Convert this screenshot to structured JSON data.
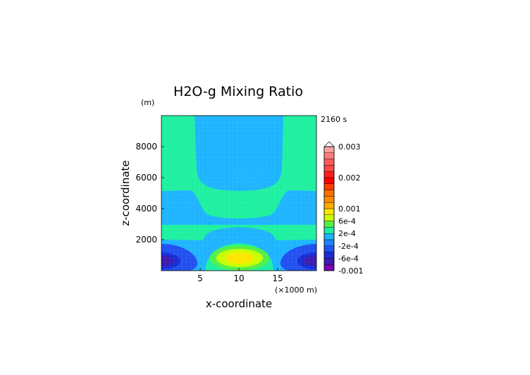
{
  "chart_data": {
    "type": "heatmap",
    "title": "H2O-g Mixing Ratio",
    "ylabel": "z-coordinate",
    "xlabel": "x-coordinate",
    "y_unit": "(m)",
    "x_unit": "(×1000 m)",
    "time_label": "2160 s",
    "xlim": [
      0,
      20
    ],
    "ylim": [
      0,
      10000
    ],
    "x_ticks": [
      5,
      10,
      15
    ],
    "y_ticks": [
      2000,
      4000,
      6000,
      8000
    ],
    "colorbar": {
      "levels": [
        -0.001,
        -0.0008,
        -0.0006,
        -0.0004,
        -0.0002,
        0,
        0.0002,
        0.0004,
        0.0006,
        0.0008,
        0.001,
        0.0012,
        0.0014,
        0.0016,
        0.0018,
        0.002,
        0.0022,
        0.0024,
        0.0026,
        0.0028,
        0.003
      ],
      "colors": [
        "#7a00b4",
        "#3c1cb0",
        "#1a2cd2",
        "#2050f0",
        "#1e82ff",
        "#1eb4ff",
        "#1ef0a0",
        "#52f046",
        "#c8ff00",
        "#ffe600",
        "#ffaa00",
        "#ff8800",
        "#ff6e00",
        "#ff3c00",
        "#ff0000",
        "#ff1e1e",
        "#ff4646",
        "#ff5a5a",
        "#ff7a7a",
        "#ffa0a0"
      ],
      "labels": [
        {
          "value": 0.003,
          "text": "0.003"
        },
        {
          "value": 0.002,
          "text": "0.002"
        },
        {
          "value": 0.001,
          "text": "0.001"
        },
        {
          "value": 0.0006,
          "text": "6e-4"
        },
        {
          "value": 0.0002,
          "text": "2e-4"
        },
        {
          "value": -0.0002,
          "text": "-2e-4"
        },
        {
          "value": -0.0006,
          "text": "-6e-4"
        },
        {
          "value": -0.001,
          "text": "-0.001"
        }
      ]
    },
    "field_regions": [
      {
        "name": "background",
        "value": 0.0001
      },
      {
        "name": "upper-central-column",
        "value": -0.0001
      },
      {
        "name": "mid-level-band",
        "value": -0.0001
      },
      {
        "name": "low-level-band",
        "value": -0.0001
      },
      {
        "name": "left-low-core",
        "value": -0.0003
      },
      {
        "name": "right-low-core",
        "value": -0.0003
      },
      {
        "name": "left-low-minimum",
        "value": -0.0005
      },
      {
        "name": "right-low-minimum",
        "value": -0.0005
      },
      {
        "name": "central-low-maximum",
        "value": 0.0003
      },
      {
        "name": "central-low-peak",
        "value": 0.0007
      }
    ]
  }
}
